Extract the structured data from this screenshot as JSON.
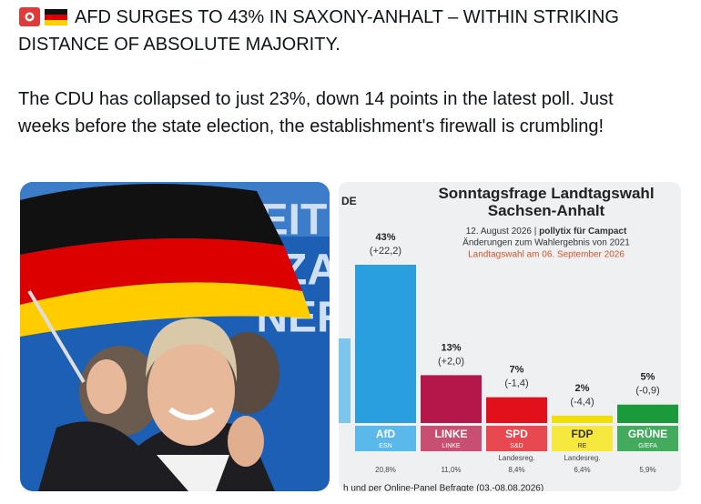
{
  "post": {
    "headline": "AFD SURGES TO 43% IN SAXONY-ANHALT – WITHIN STRIKING DISTANCE OF ABSOLUTE MAJORITY.",
    "body": "The CDU has collapsed to just 23%, down 14 points in the latest poll. Just weeks before the state election, the establishment's firewall is crumbling!",
    "photo_backdrop_text": [
      "EIT",
      "ZA",
      "NER"
    ]
  },
  "chart_data": {
    "type": "bar",
    "corner_label": "DE",
    "title": "Sonntagsfrage Landtagswahl Sachsen-Anhalt",
    "date": "12. August 2026",
    "source": "pollytix für Campact",
    "subtitle": "Änderungen zum Wahlergebnis von 2021",
    "election_note": "Landtagswahl am 06. September 2026",
    "categories": [
      "AfD",
      "LINKE",
      "SPD",
      "FDP",
      "GRÜNE"
    ],
    "groups": [
      "ESN",
      "LINKE",
      "S&D",
      "RE",
      "G/EFA"
    ],
    "values": [
      43,
      13,
      7,
      2,
      5
    ],
    "value_labels": [
      "43%",
      "13%",
      "7%",
      "2%",
      "5%"
    ],
    "changes": [
      "(+22,2)",
      "(+2,0)",
      "(-1,4)",
      "(-4,4)",
      "(-0,9)"
    ],
    "colors": [
      "#2a9fe0",
      "#b5174a",
      "#e2101a",
      "#f3df00",
      "#1a9a3a"
    ],
    "government": [
      null,
      null,
      "Landesreg.",
      "Landesreg.",
      null
    ],
    "previous": [
      20.8,
      11.0,
      8.4,
      6.4,
      5.9
    ],
    "previous_labels": [
      "20,8%",
      "11,0%",
      "8,4%",
      "6,4%",
      "5,9%"
    ],
    "footer": "h und per Online-Panel Befragte (03.-08.08.2026)"
  }
}
